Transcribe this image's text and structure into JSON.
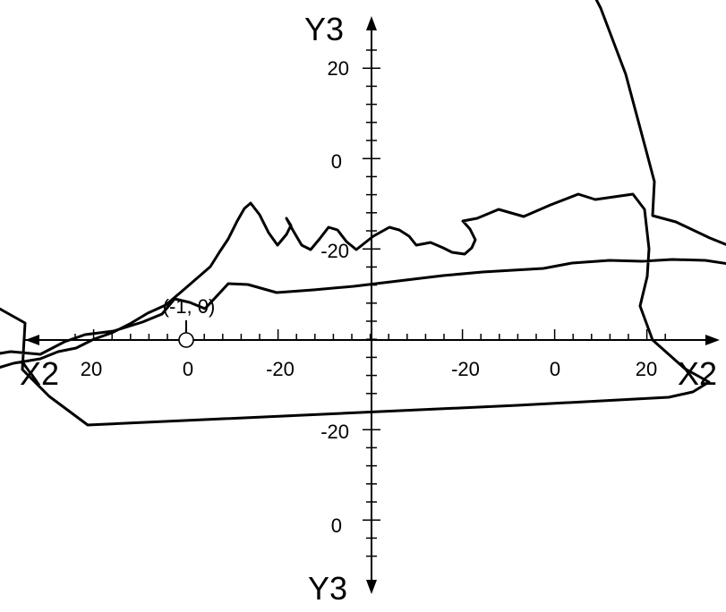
{
  "chart_data": {
    "type": "line",
    "grid": false,
    "axes": {
      "x_label_left": "X2",
      "x_label_right": "X2",
      "y_label_top": "Y3",
      "y_label_bottom": "Y3"
    },
    "ticks": {
      "vertical_upper": [
        "20",
        "0",
        "-20"
      ],
      "vertical_lower": [
        "-20",
        "0"
      ],
      "horizontal": [
        "20",
        "0",
        "-20",
        "-20",
        "0",
        "20"
      ]
    },
    "point": {
      "label": "(-1, 0)",
      "x": -1,
      "y": 0
    },
    "trajectory": [
      [
        -5.16,
        0.24
      ],
      [
        -5.37,
        0.48
      ],
      [
        -5.37,
        -0.18
      ],
      [
        -5.37,
        0.24
      ],
      [
        -5.12,
        -0.11
      ],
      [
        -5.13,
        -0.39
      ],
      [
        -4.95,
        -0.44
      ],
      [
        -4.85,
        -0.33
      ],
      [
        -4.6,
        -0.28
      ],
      [
        -4.3,
        -0.35
      ],
      [
        -4.0,
        -0.26
      ],
      [
        -3.7,
        -0.21
      ],
      [
        -3.5,
        -0.13
      ],
      [
        -3.3,
        -0.09
      ],
      [
        -3.1,
        0.01
      ],
      [
        -2.9,
        0.08
      ],
      [
        -2.7,
        0.18
      ],
      [
        -2.5,
        0.3
      ],
      [
        -2.3,
        0.39
      ],
      [
        -2.1,
        0.56
      ],
      [
        -1.95,
        0.69
      ],
      [
        -1.8,
        0.82
      ],
      [
        -1.7,
        0.98
      ],
      [
        -1.6,
        1.13
      ],
      [
        -1.5,
        1.33
      ],
      [
        -1.42,
        1.47
      ],
      [
        -1.35,
        1.53
      ],
      [
        -1.25,
        1.4
      ],
      [
        -1.15,
        1.2
      ],
      [
        -1.05,
        1.06
      ],
      [
        -0.95,
        1.18
      ],
      [
        -0.9,
        1.28
      ],
      [
        -0.95,
        1.36
      ],
      [
        -0.88,
        1.23
      ],
      [
        -0.78,
        1.06
      ],
      [
        -0.68,
        1.01
      ],
      [
        -0.58,
        1.13
      ],
      [
        -0.48,
        1.26
      ],
      [
        -0.38,
        1.23
      ],
      [
        -0.28,
        1.1
      ],
      [
        -0.17,
        1.01
      ],
      [
        0.02,
        1.16
      ],
      [
        0.2,
        1.26
      ],
      [
        0.31,
        1.23
      ],
      [
        0.42,
        1.16
      ],
      [
        0.5,
        1.06
      ],
      [
        0.66,
        1.09
      ],
      [
        0.8,
        1.03
      ],
      [
        0.9,
        0.98
      ],
      [
        1.04,
        0.96
      ],
      [
        1.12,
        1.03
      ],
      [
        1.16,
        1.12
      ],
      [
        1.1,
        1.24
      ],
      [
        1.02,
        1.33
      ],
      [
        1.18,
        1.36
      ],
      [
        1.42,
        1.46
      ],
      [
        1.7,
        1.38
      ],
      [
        2.0,
        1.51
      ],
      [
        2.31,
        1.63
      ],
      [
        2.5,
        1.57
      ],
      [
        2.92,
        1.63
      ],
      [
        3.05,
        1.46
      ],
      [
        3.1,
        1.02
      ],
      [
        3.08,
        0.71
      ],
      [
        3.0,
        0.38
      ],
      [
        3.14,
        0.0
      ],
      [
        3.5,
        -0.32
      ],
      [
        3.77,
        -0.47
      ],
      [
        3.59,
        -0.58
      ],
      [
        3.32,
        -0.64
      ],
      [
        1.63,
        -0.73
      ],
      [
        -3.17,
        -0.95
      ],
      [
        -3.6,
        -0.63
      ],
      [
        -3.9,
        -0.33
      ],
      [
        -3.87,
        0.19
      ],
      [
        -4.62,
        0.61
      ],
      [
        -5.12,
        1.44
      ],
      [
        -5.51,
        2.91
      ],
      [
        -5.17,
        3.84
      ],
      [
        -4.53,
        4.57
      ],
      [
        -3.26,
        5.31
      ],
      [
        -2.22,
        5.61
      ],
      [
        -1.89,
        5.47
      ],
      [
        -1.0,
        4.93
      ],
      [
        -0.04,
        4.92
      ],
      [
        0.66,
        4.84
      ],
      [
        1.46,
        4.62
      ],
      [
        1.97,
        4.48
      ],
      [
        2.25,
        4.31
      ],
      [
        2.56,
        3.71
      ],
      [
        2.84,
        2.97
      ],
      [
        3.07,
        2.11
      ],
      [
        3.16,
        1.77
      ],
      [
        3.14,
        1.39
      ],
      [
        3.4,
        1.32
      ],
      [
        3.78,
        1.14
      ],
      [
        4.2,
        0.97
      ],
      [
        4.57,
        0.97
      ],
      [
        4.64,
        0.79
      ],
      [
        4.12,
        0.83
      ],
      [
        3.73,
        0.89
      ],
      [
        3.36,
        0.9
      ],
      [
        3.02,
        0.88
      ],
      [
        2.66,
        0.89
      ],
      [
        2.24,
        0.86
      ],
      [
        1.92,
        0.8
      ],
      [
        1.58,
        0.78
      ],
      [
        1.24,
        0.76
      ],
      [
        0.8,
        0.72
      ],
      [
        0.3,
        0.66
      ],
      [
        -0.2,
        0.6
      ],
      [
        -0.65,
        0.56
      ],
      [
        -1.06,
        0.53
      ],
      [
        -1.38,
        0.62
      ],
      [
        -1.6,
        0.63
      ],
      [
        -1.72,
        0.5
      ],
      [
        -1.86,
        0.35
      ],
      [
        -2.03,
        0.42
      ],
      [
        -2.2,
        0.46
      ],
      [
        -2.34,
        0.29
      ],
      [
        -2.56,
        0.2
      ],
      [
        -2.88,
        0.1
      ],
      [
        -3.2,
        0.06
      ],
      [
        -3.43,
        -0.02
      ],
      [
        -3.7,
        -0.16
      ],
      [
        -4.03,
        -0.13
      ],
      [
        -4.28,
        -0.17
      ],
      [
        -4.6,
        -0.28
      ],
      [
        -4.95,
        -0.44
      ]
    ]
  }
}
